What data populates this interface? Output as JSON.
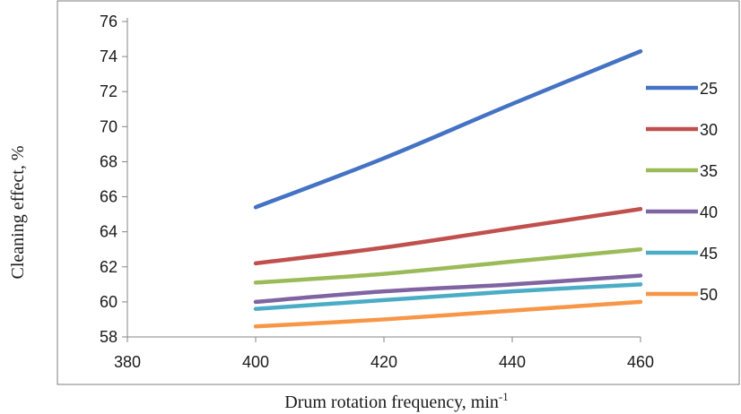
{
  "chart_data": {
    "type": "line",
    "title": "",
    "xlabel": "Drum rotation frequency, min",
    "xlabel_superscript": "-1",
    "ylabel": "Cleaning effect, %",
    "xlim": [
      380,
      460
    ],
    "ylim": [
      58,
      76
    ],
    "x_ticks": [
      "380",
      "400",
      "420",
      "440",
      "460"
    ],
    "y_ticks": [
      "58",
      "60",
      "62",
      "64",
      "66",
      "68",
      "70",
      "72",
      "74",
      "76"
    ],
    "grid": false,
    "legend_position": "right",
    "x": [
      400,
      420,
      440,
      460
    ],
    "series": [
      {
        "name": "25",
        "color": "#4472c4",
        "values": [
          65.4,
          68.2,
          71.3,
          74.3
        ]
      },
      {
        "name": "30",
        "color": "#c0504d",
        "values": [
          62.2,
          63.1,
          64.2,
          65.3
        ]
      },
      {
        "name": "35",
        "color": "#9bbb59",
        "values": [
          61.1,
          61.6,
          62.3,
          63.0
        ]
      },
      {
        "name": "40",
        "color": "#8064a2",
        "values": [
          60.0,
          60.6,
          61.0,
          61.5
        ]
      },
      {
        "name": "45",
        "color": "#4bacc6",
        "values": [
          59.6,
          60.1,
          60.6,
          61.0
        ]
      },
      {
        "name": "50",
        "color": "#f79646",
        "values": [
          58.6,
          59.0,
          59.5,
          60.0
        ]
      }
    ]
  }
}
